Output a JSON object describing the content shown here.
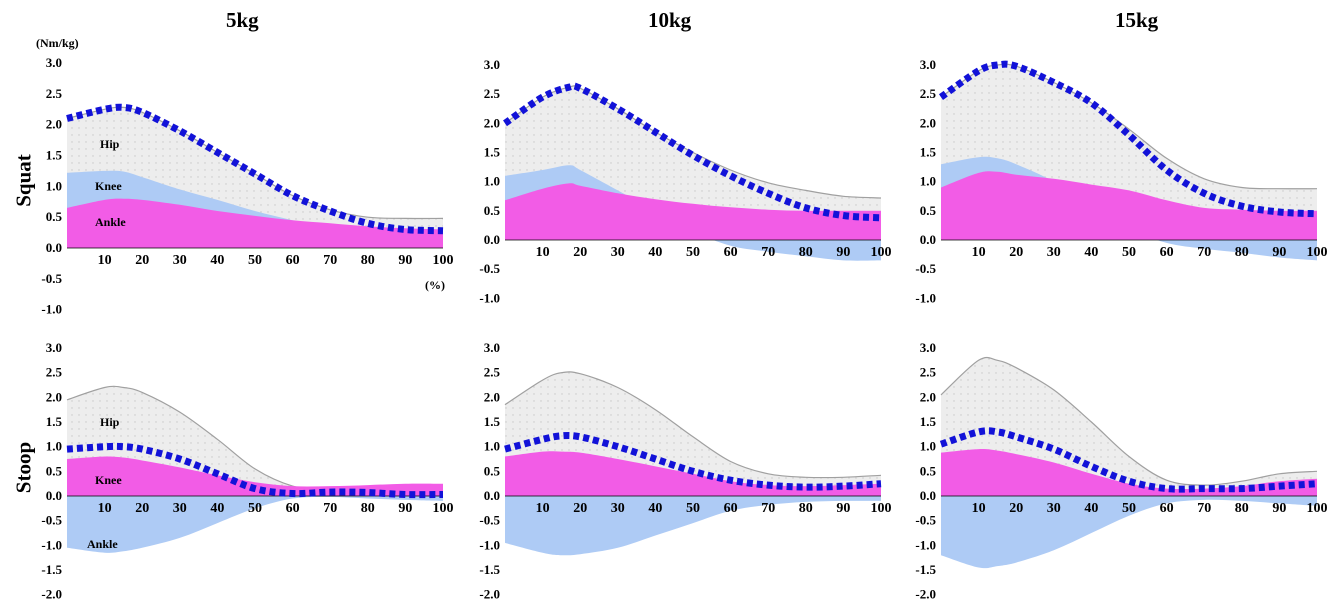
{
  "figure": {
    "columns": [
      "5kg",
      "10kg",
      "15kg"
    ],
    "rows": [
      "Squat",
      "Stoop"
    ],
    "y_unit": "(Nm/kg)",
    "x_unit": "(%)"
  },
  "colors": {
    "hip_fill": "#ededed",
    "hip_line": "#a0a0a0",
    "knee": "#aecbf5",
    "ankle": "#f25ce6",
    "total": "#1212d8"
  },
  "chart_data": [
    {
      "type": "area",
      "panel": "squat-5kg",
      "title": "5kg",
      "row": "Squat",
      "ylabel": "(Nm/kg)",
      "xlabel": "(%)",
      "xlim": [
        0,
        100
      ],
      "ylim": [
        -1.0,
        3.0
      ],
      "yticks": [
        "3.0",
        "2.5",
        "2.0",
        "1.5",
        "1.0",
        "0.5",
        "0.0",
        "-0.5",
        "-1.0"
      ],
      "xticks": [
        "10",
        "20",
        "30",
        "40",
        "50",
        "60",
        "70",
        "80",
        "90",
        "100"
      ],
      "labels": {
        "hip": "Hip",
        "knee": "Knee",
        "ankle": "Ankle"
      },
      "x": [
        0,
        10,
        15,
        20,
        30,
        40,
        50,
        60,
        70,
        80,
        90,
        100
      ],
      "series": [
        {
          "name": "Hip",
          "values": [
            2.1,
            2.25,
            2.28,
            2.2,
            1.9,
            1.55,
            1.2,
            0.85,
            0.62,
            0.5,
            0.48,
            0.48
          ]
        },
        {
          "name": "Knee",
          "values": [
            1.22,
            1.25,
            1.24,
            1.15,
            0.95,
            0.78,
            0.6,
            0.45,
            0.3,
            0.15,
            0.05,
            0.0
          ]
        },
        {
          "name": "Ankle",
          "values": [
            0.65,
            0.78,
            0.8,
            0.78,
            0.7,
            0.6,
            0.52,
            0.45,
            0.4,
            0.35,
            0.32,
            0.3
          ]
        },
        {
          "name": "Total",
          "values": [
            2.1,
            2.25,
            2.28,
            2.2,
            1.9,
            1.55,
            1.2,
            0.85,
            0.6,
            0.4,
            0.3,
            0.28
          ]
        }
      ]
    },
    {
      "type": "area",
      "panel": "squat-10kg",
      "title": "10kg",
      "row": "Squat",
      "xlim": [
        0,
        100
      ],
      "ylim": [
        -1.0,
        3.0
      ],
      "yticks": [
        "3.0",
        "2.5",
        "2.0",
        "1.5",
        "1.0",
        "0.5",
        "0.0",
        "-0.5",
        "-1.0"
      ],
      "xticks": [
        "10",
        "20",
        "30",
        "40",
        "50",
        "60",
        "70",
        "80",
        "90",
        "100"
      ],
      "x": [
        0,
        10,
        17,
        20,
        30,
        40,
        50,
        60,
        70,
        80,
        90,
        100
      ],
      "series": [
        {
          "name": "Hip",
          "values": [
            2.0,
            2.45,
            2.62,
            2.6,
            2.25,
            1.85,
            1.5,
            1.2,
            0.98,
            0.85,
            0.75,
            0.72
          ]
        },
        {
          "name": "Knee",
          "values": [
            1.1,
            1.2,
            1.28,
            1.2,
            0.85,
            0.5,
            0.15,
            -0.1,
            -0.2,
            -0.28,
            -0.35,
            -0.35
          ]
        },
        {
          "name": "Ankle",
          "values": [
            0.68,
            0.88,
            0.97,
            0.93,
            0.8,
            0.7,
            0.62,
            0.56,
            0.52,
            0.5,
            0.5,
            0.5
          ]
        },
        {
          "name": "Total",
          "values": [
            2.0,
            2.45,
            2.62,
            2.6,
            2.25,
            1.85,
            1.45,
            1.1,
            0.8,
            0.55,
            0.42,
            0.38
          ]
        }
      ]
    },
    {
      "type": "area",
      "panel": "squat-15kg",
      "title": "15kg",
      "row": "Squat",
      "xlim": [
        0,
        100
      ],
      "ylim": [
        -1.0,
        3.0
      ],
      "yticks": [
        "3.0",
        "2.5",
        "2.0",
        "1.5",
        "1.0",
        "0.5",
        "0.0",
        "-0.5",
        "-1.0"
      ],
      "xticks": [
        "10",
        "20",
        "30",
        "40",
        "50",
        "60",
        "70",
        "80",
        "90",
        "100"
      ],
      "x": [
        0,
        10,
        15,
        20,
        30,
        40,
        50,
        60,
        70,
        80,
        90,
        100
      ],
      "series": [
        {
          "name": "Hip",
          "values": [
            2.45,
            2.9,
            3.0,
            2.98,
            2.7,
            2.35,
            1.9,
            1.4,
            1.05,
            0.9,
            0.88,
            0.88
          ]
        },
        {
          "name": "Knee",
          "values": [
            1.3,
            1.42,
            1.4,
            1.3,
            1.0,
            0.55,
            0.2,
            -0.05,
            -0.15,
            -0.22,
            -0.3,
            -0.35
          ]
        },
        {
          "name": "Ankle",
          "values": [
            0.9,
            1.15,
            1.17,
            1.12,
            1.05,
            0.95,
            0.85,
            0.68,
            0.55,
            0.52,
            0.5,
            0.5
          ]
        },
        {
          "name": "Total",
          "values": [
            2.45,
            2.9,
            3.0,
            2.98,
            2.7,
            2.35,
            1.8,
            1.2,
            0.8,
            0.58,
            0.48,
            0.45
          ]
        }
      ]
    },
    {
      "type": "area",
      "panel": "stoop-5kg",
      "title": "5kg",
      "row": "Stoop",
      "xlim": [
        0,
        100
      ],
      "ylim": [
        -2.0,
        3.0
      ],
      "yticks": [
        "3.0",
        "2.5",
        "2.0",
        "1.5",
        "1.0",
        "0.5",
        "0.0",
        "-0.5",
        "-1.0",
        "-1.5",
        "-2.0"
      ],
      "xticks": [
        "10",
        "20",
        "30",
        "40",
        "50",
        "60",
        "70",
        "80",
        "90",
        "100"
      ],
      "labels": {
        "hip": "Hip",
        "knee": "Knee",
        "ankle": "Ankle"
      },
      "x": [
        0,
        10,
        15,
        20,
        30,
        40,
        50,
        60,
        70,
        80,
        90,
        100
      ],
      "series": [
        {
          "name": "Hip",
          "values": [
            1.95,
            2.2,
            2.2,
            2.1,
            1.7,
            1.15,
            0.55,
            0.2,
            0.1,
            0.1,
            0.1,
            0.1
          ]
        },
        {
          "name": "Knee",
          "values": [
            0.75,
            0.8,
            0.78,
            0.72,
            0.58,
            0.42,
            0.28,
            0.2,
            0.2,
            0.22,
            0.25,
            0.25
          ]
        },
        {
          "name": "Ankle",
          "values": [
            -1.05,
            -1.15,
            -1.12,
            -1.05,
            -0.85,
            -0.55,
            -0.25,
            -0.05,
            -0.02,
            -0.05,
            -0.08,
            -0.1
          ]
        },
        {
          "name": "Total",
          "values": [
            0.95,
            1.0,
            1.0,
            0.95,
            0.75,
            0.45,
            0.15,
            0.05,
            0.08,
            0.07,
            0.03,
            0.03
          ]
        }
      ]
    },
    {
      "type": "area",
      "panel": "stoop-10kg",
      "title": "10kg",
      "row": "Stoop",
      "xlim": [
        0,
        100
      ],
      "ylim": [
        -2.0,
        3.0
      ],
      "yticks": [
        "3.0",
        "2.5",
        "2.0",
        "1.5",
        "1.0",
        "0.5",
        "0.0",
        "-0.5",
        "-1.0",
        "-1.5",
        "-2.0"
      ],
      "xticks": [
        "10",
        "20",
        "30",
        "40",
        "50",
        "60",
        "70",
        "80",
        "90",
        "100"
      ],
      "x": [
        0,
        10,
        15,
        20,
        30,
        40,
        50,
        60,
        70,
        80,
        90,
        100
      ],
      "series": [
        {
          "name": "Hip",
          "values": [
            1.85,
            2.35,
            2.5,
            2.48,
            2.2,
            1.75,
            1.2,
            0.7,
            0.45,
            0.38,
            0.38,
            0.42
          ]
        },
        {
          "name": "Knee",
          "values": [
            0.8,
            0.9,
            0.9,
            0.88,
            0.75,
            0.6,
            0.45,
            0.3,
            0.22,
            0.2,
            0.22,
            0.25
          ]
        },
        {
          "name": "Ankle",
          "values": [
            -0.95,
            -1.15,
            -1.2,
            -1.18,
            -1.05,
            -0.8,
            -0.55,
            -0.3,
            -0.18,
            -0.12,
            -0.1,
            -0.1
          ]
        },
        {
          "name": "Total",
          "values": [
            0.95,
            1.15,
            1.22,
            1.2,
            1.0,
            0.75,
            0.5,
            0.32,
            0.22,
            0.18,
            0.2,
            0.25
          ]
        }
      ]
    },
    {
      "type": "area",
      "panel": "stoop-15kg",
      "title": "15kg",
      "row": "Stoop",
      "xlim": [
        0,
        100
      ],
      "ylim": [
        -2.0,
        3.0
      ],
      "yticks": [
        "3.0",
        "2.5",
        "2.0",
        "1.5",
        "1.0",
        "0.5",
        "0.0",
        "-0.5",
        "-1.0",
        "-1.5",
        "-2.0"
      ],
      "xticks": [
        "10",
        "20",
        "30",
        "40",
        "50",
        "60",
        "70",
        "80",
        "90",
        "100"
      ],
      "x": [
        0,
        10,
        15,
        20,
        30,
        40,
        50,
        60,
        70,
        80,
        90,
        100
      ],
      "series": [
        {
          "name": "Hip",
          "values": [
            2.05,
            2.75,
            2.75,
            2.6,
            2.15,
            1.5,
            0.8,
            0.32,
            0.22,
            0.3,
            0.45,
            0.5
          ]
        },
        {
          "name": "Knee",
          "values": [
            0.88,
            0.95,
            0.92,
            0.85,
            0.68,
            0.45,
            0.25,
            0.15,
            0.15,
            0.2,
            0.3,
            0.35
          ]
        },
        {
          "name": "Ankle",
          "values": [
            -1.2,
            -1.45,
            -1.42,
            -1.35,
            -1.1,
            -0.75,
            -0.4,
            -0.15,
            -0.08,
            -0.1,
            -0.15,
            -0.2
          ]
        },
        {
          "name": "Total",
          "values": [
            1.05,
            1.3,
            1.3,
            1.2,
            0.95,
            0.6,
            0.3,
            0.15,
            0.15,
            0.15,
            0.2,
            0.25
          ]
        }
      ]
    }
  ]
}
